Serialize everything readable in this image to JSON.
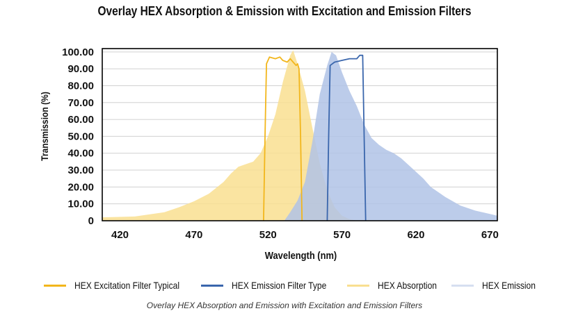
{
  "chart_data": {
    "type": "area",
    "title": "Overlay HEX Absorption & Emission with Excitation and Emission Filters",
    "xlabel": "Wavelength (nm)",
    "ylabel": "Transmission (%)",
    "xlim": [
      408,
      675
    ],
    "ylim": [
      0,
      102
    ],
    "xticks": [
      "420",
      "470",
      "520",
      "570",
      "620",
      "670"
    ],
    "yticks": [
      "0",
      "10.00",
      "20.00",
      "30.00",
      "40.00",
      "50.00",
      "60.00",
      "70.00",
      "80.00",
      "90.00",
      "100.00"
    ],
    "grid": true,
    "legend_position": "bottom",
    "series": [
      {
        "name": "HEX Absorption",
        "kind": "area",
        "color": "#f9df90",
        "points": [
          [
            408,
            2
          ],
          [
            430,
            2.5
          ],
          [
            450,
            5
          ],
          [
            460,
            8
          ],
          [
            470,
            11.5
          ],
          [
            480,
            16
          ],
          [
            490,
            23
          ],
          [
            495,
            28
          ],
          [
            500,
            32
          ],
          [
            505,
            33.5
          ],
          [
            510,
            35
          ],
          [
            515,
            40
          ],
          [
            520,
            50
          ],
          [
            525,
            63
          ],
          [
            530,
            82
          ],
          [
            535,
            98
          ],
          [
            537,
            101
          ],
          [
            540,
            93
          ],
          [
            545,
            77
          ],
          [
            550,
            55
          ],
          [
            555,
            34
          ],
          [
            560,
            18
          ],
          [
            565,
            8
          ],
          [
            570,
            3
          ],
          [
            575,
            1
          ],
          [
            580,
            0
          ]
        ]
      },
      {
        "name": "HEX Emission",
        "kind": "area",
        "color": "#b0c3e6",
        "points": [
          [
            531,
            0
          ],
          [
            535,
            5
          ],
          [
            540,
            12
          ],
          [
            545,
            23
          ],
          [
            550,
            47
          ],
          [
            555,
            75
          ],
          [
            560,
            92
          ],
          [
            563,
            100
          ],
          [
            566,
            98
          ],
          [
            570,
            88
          ],
          [
            575,
            77
          ],
          [
            580,
            68
          ],
          [
            585,
            57
          ],
          [
            590,
            49
          ],
          [
            595,
            45
          ],
          [
            600,
            42
          ],
          [
            605,
            40
          ],
          [
            610,
            37
          ],
          [
            615,
            33
          ],
          [
            620,
            29
          ],
          [
            625,
            25
          ],
          [
            630,
            20
          ],
          [
            640,
            14
          ],
          [
            650,
            9
          ],
          [
            660,
            6
          ],
          [
            670,
            4
          ],
          [
            675,
            3
          ]
        ]
      },
      {
        "name": "HEX Excitation Filter Typical",
        "kind": "line",
        "color": "#f2b61c",
        "points": [
          [
            517,
            0
          ],
          [
            518,
            50
          ],
          [
            519,
            93
          ],
          [
            521,
            97
          ],
          [
            525,
            96
          ],
          [
            528,
            97
          ],
          [
            530,
            95
          ],
          [
            533,
            94
          ],
          [
            535,
            96
          ],
          [
            537,
            94
          ],
          [
            539,
            92
          ],
          [
            540,
            93
          ],
          [
            541,
            90
          ],
          [
            542,
            50
          ],
          [
            543,
            0
          ]
        ]
      },
      {
        "name": "HEX Emission Filter Type",
        "kind": "line",
        "color": "#3a66ac",
        "points": [
          [
            560,
            0
          ],
          [
            561,
            50
          ],
          [
            562,
            92
          ],
          [
            565,
            94
          ],
          [
            570,
            95
          ],
          [
            575,
            96
          ],
          [
            580,
            96
          ],
          [
            582,
            98
          ],
          [
            584,
            98
          ],
          [
            585,
            50
          ],
          [
            586,
            0
          ]
        ]
      }
    ]
  },
  "legend": [
    {
      "label": "HEX Excitation Filter Typical",
      "color": "#f2b61c"
    },
    {
      "label": "HEX Emission Filter Type",
      "color": "#3a66ac"
    },
    {
      "label": "HEX Absorption",
      "color": "#f9df90"
    },
    {
      "label": "HEX Emission",
      "color": "#d6dff0"
    }
  ],
  "caption": "Overlay HEX Absorption and Emission with Excitation and Emission Filters"
}
